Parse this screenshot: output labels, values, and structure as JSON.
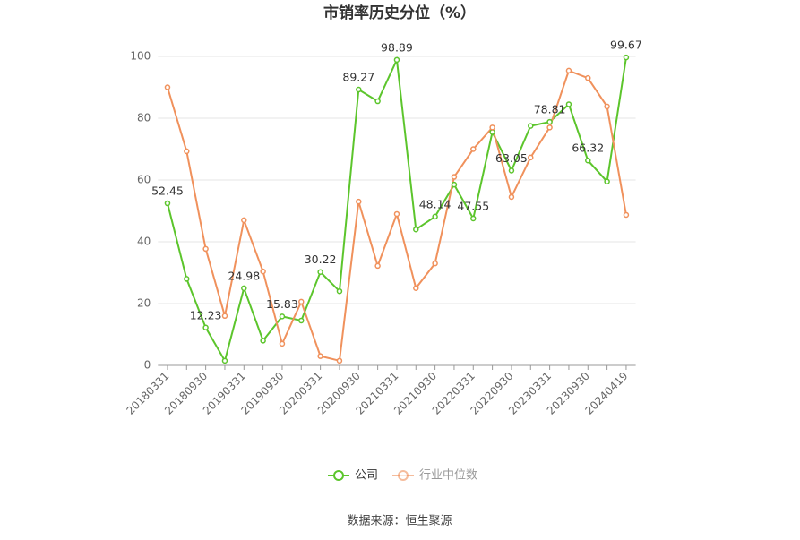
{
  "chart_data": {
    "type": "line",
    "title": "市销率历史分位（%）",
    "categories": [
      "20180331",
      null,
      "20180930",
      null,
      "20190331",
      null,
      "20190930",
      null,
      "20200331",
      null,
      "20200930",
      null,
      "20210331",
      null,
      "20210930",
      null,
      "20220331",
      null,
      "20220930",
      null,
      "20230331",
      null,
      "20230930",
      null,
      "20240419"
    ],
    "series": [
      {
        "name": "公司",
        "color": "#5cc52c",
        "values": [
          52.45,
          28,
          12.23,
          1.5,
          24.98,
          8,
          15.83,
          14.5,
          30.22,
          24,
          89.27,
          85.5,
          98.89,
          44,
          48.14,
          58.5,
          47.55,
          75.5,
          63.05,
          77.5,
          78.81,
          84.5,
          66.32,
          59.5,
          99.67
        ],
        "value_labels": [
          "52.45",
          null,
          "12.23",
          null,
          "24.98",
          null,
          "15.83",
          null,
          "30.22",
          null,
          "89.27",
          null,
          "98.89",
          null,
          "48.14",
          null,
          "47.55",
          null,
          "63.05",
          null,
          "78.81",
          null,
          "66.32",
          null,
          "99.67"
        ]
      },
      {
        "name": "行业中位数",
        "color": "#f0915c",
        "values": [
          90,
          69.3,
          37.7,
          16,
          47,
          30.4,
          7,
          20.6,
          3,
          1.5,
          53,
          32.2,
          49,
          25,
          33,
          61,
          70,
          77,
          54.5,
          67.3,
          77,
          95.4,
          93,
          83.8,
          48.7
        ]
      }
    ],
    "ylim": [
      0,
      100
    ],
    "yticks": [
      0,
      20,
      40,
      60,
      80,
      100
    ],
    "grid": true,
    "source": "数据来源：恒生聚源"
  }
}
